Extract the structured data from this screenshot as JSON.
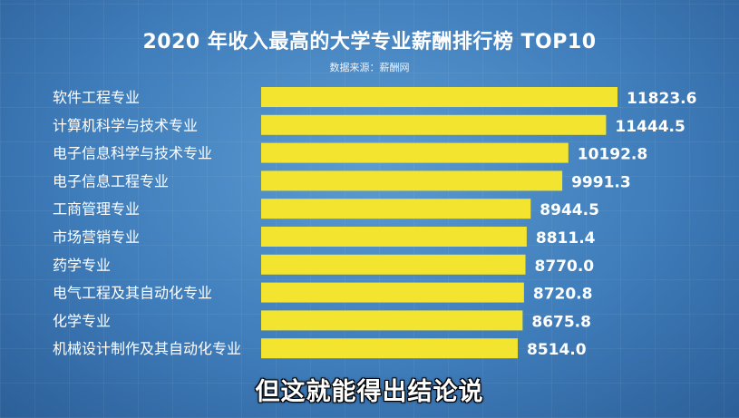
{
  "chart_data": {
    "type": "bar",
    "orientation": "horizontal",
    "title": "2020 年收入最高的大学专业薪酬排行榜 TOP10",
    "subtitle": "数据来源：薪酬网",
    "categories": [
      "软件工程专业",
      "计算机科学与技术专业",
      "电子信息科学与技术专业",
      "电子信息工程专业",
      "工商管理专业",
      "市场营销专业",
      "药学专业",
      "电气工程及其自动化专业",
      "化学专业",
      "机械设计制作及其自动化专业"
    ],
    "values": [
      11823.6,
      11444.5,
      10192.8,
      9991.3,
      8944.5,
      8811.4,
      8770.0,
      8720.8,
      8675.8,
      8514.0
    ],
    "value_labels": [
      "11823.6",
      "11444.5",
      "10192.8",
      "9991.3",
      "8944.5",
      "8811.4",
      "8770.0",
      "8720.8",
      "8675.8",
      "8514.0"
    ],
    "bar_color": "#f2e42f",
    "grid": false,
    "legend": "none"
  },
  "caption": "但这就能得出结论说",
  "colors": {
    "background": "#4a88c4",
    "text": "#ffffff"
  }
}
